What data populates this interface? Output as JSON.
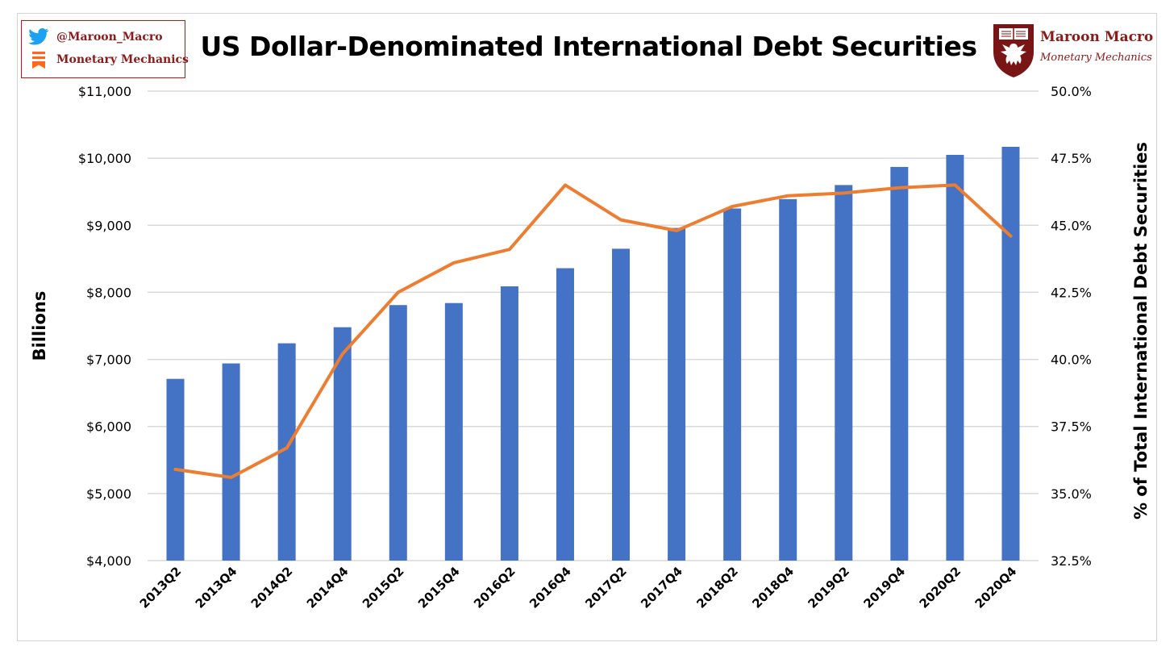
{
  "header": {
    "title": "US Dollar-Denominated International Debt Securities",
    "twitter_handle": "@Maroon_Macro",
    "substack_name": "Monetary Mechanics",
    "brand_name": "Maroon Macro",
    "brand_subtitle": "Monetary Mechanics",
    "icons": [
      "twitter-bird-icon",
      "substack-icon",
      "university-seal-icon"
    ]
  },
  "colors": {
    "bar": "#4472c4",
    "line": "#ed7d31",
    "grid": "#d9d9d9",
    "brand": "#8b1a1a"
  },
  "chart_data": {
    "type": "bar",
    "combo": "bar-line-dual-axis",
    "title": "US Dollar-Denominated International Debt Securities",
    "ylabel": "Billions",
    "y2label": "% of Total International Debt Securities",
    "ylim": [
      4000,
      11000
    ],
    "y2lim": [
      32.5,
      50.0
    ],
    "yticks": [
      "$4,000",
      "$5,000",
      "$6,000",
      "$7,000",
      "$8,000",
      "$9,000",
      "$10,000",
      "$11,000"
    ],
    "y2ticks": [
      "32.5%",
      "35.0%",
      "37.5%",
      "40.0%",
      "42.5%",
      "45.0%",
      "47.5%",
      "50.0%"
    ],
    "categories": [
      "2013Q2",
      "2013Q4",
      "2014Q2",
      "2014Q4",
      "2015Q2",
      "2015Q4",
      "2016Q2",
      "2016Q4",
      "2017Q2",
      "2017Q4",
      "2018Q2",
      "2018Q4",
      "2019Q2",
      "2019Q4",
      "2020Q2",
      "2020Q4"
    ],
    "series": [
      {
        "type": "bar",
        "axis": "left",
        "values": [
          6710,
          6940,
          7240,
          7480,
          7810,
          7840,
          8090,
          8360,
          8650,
          8960,
          9250,
          9390,
          9600,
          9870,
          10050,
          10170
        ]
      },
      {
        "type": "line",
        "axis": "right",
        "values": [
          35.9,
          35.6,
          36.7,
          40.2,
          42.5,
          43.6,
          44.1,
          46.5,
          45.2,
          44.8,
          45.7,
          46.1,
          46.2,
          46.4,
          46.5,
          44.6
        ]
      }
    ],
    "grid": true,
    "legend": "none"
  }
}
